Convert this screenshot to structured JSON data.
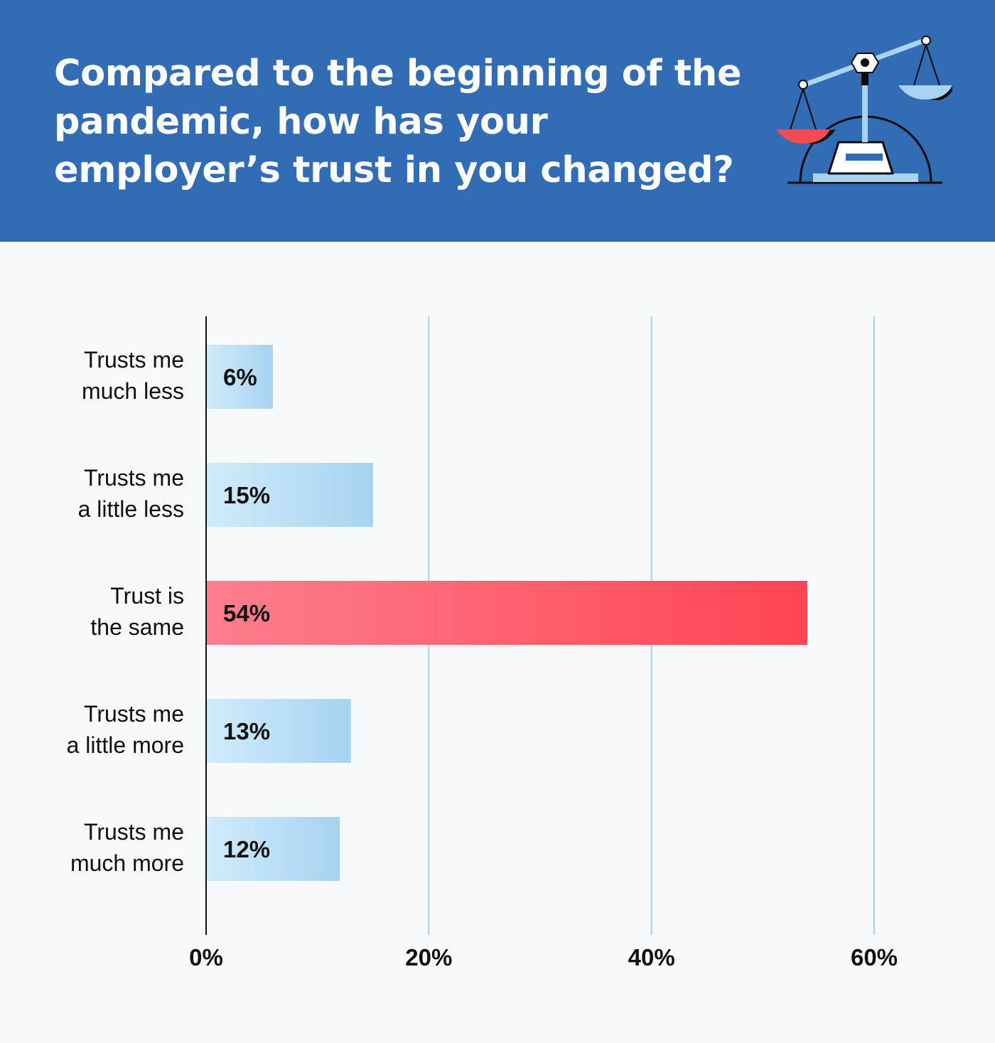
{
  "header": {
    "title": "Compared to the beginning of the pandemic, how has your employer’s trust in you changed?",
    "icon": "balance-scale-icon"
  },
  "colors": {
    "header_bg": "#326cb5",
    "bar_default_start": "#d0ecfb",
    "bar_default_end": "#a6d3f1",
    "bar_highlight_start": "#fc7f8e",
    "bar_highlight_end": "#ff4452",
    "grid": "#a9d2ec"
  },
  "chart_data": {
    "type": "bar",
    "orientation": "horizontal",
    "categories": [
      [
        "Trusts me",
        "much less"
      ],
      [
        "Trusts me",
        "a little less"
      ],
      [
        "Trust is",
        "the same"
      ],
      [
        "Trusts me",
        "a little more"
      ],
      [
        "Trusts me",
        "much more"
      ]
    ],
    "values": [
      6,
      15,
      54,
      13,
      12
    ],
    "value_labels": [
      "6%",
      "15%",
      "54%",
      "13%",
      "12%"
    ],
    "highlight_index": 2,
    "xlim": [
      0,
      60
    ],
    "ticks": [
      0,
      20,
      40,
      60
    ],
    "tick_labels": [
      "0%",
      "20%",
      "40%",
      "60%"
    ],
    "grid": true
  }
}
